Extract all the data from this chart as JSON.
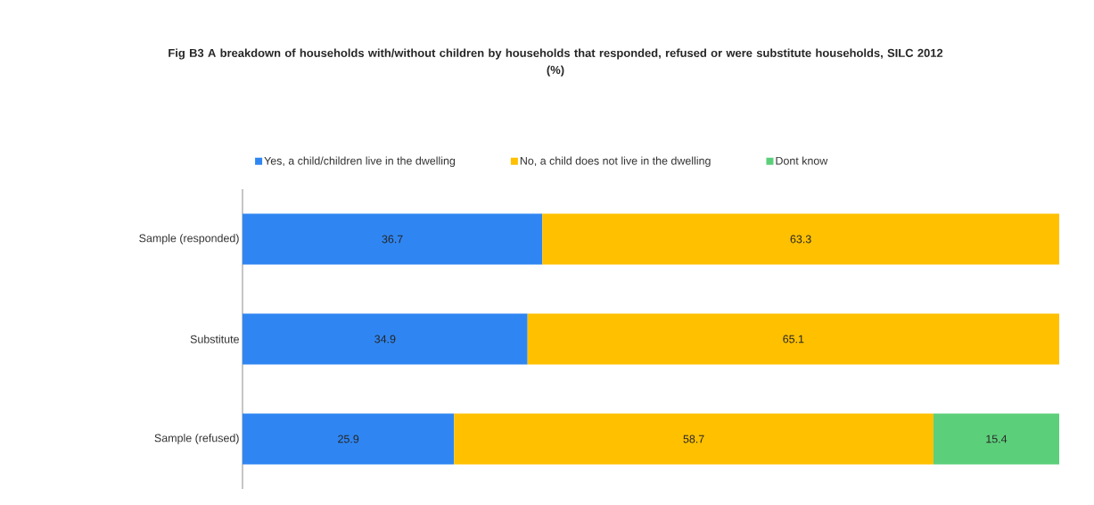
{
  "chart_data": {
    "type": "bar",
    "orientation": "horizontal",
    "stacked": true,
    "data_labels": true,
    "legend": "top",
    "tick_labels": "y",
    "title": "Fig B3 A breakdown of households with/without children by households that responded, refused or were substitute households, SILC 2012 (%)",
    "categories": [
      "Sample (responded)",
      "Substitute",
      "Sample (refused)"
    ],
    "xlim": [
      0,
      100
    ],
    "series": [
      {
        "name": "Yes, a child/children live in the dwelling",
        "color": "#2f86f2",
        "values": [
          36.7,
          34.9,
          25.9
        ]
      },
      {
        "name": "No, a child does not live in the dwelling",
        "color": "#ffc000",
        "values": [
          63.3,
          65.1,
          58.7
        ]
      },
      {
        "name": "Dont know",
        "color": "#5ccf7a",
        "values": [
          null,
          null,
          15.4
        ]
      }
    ]
  }
}
